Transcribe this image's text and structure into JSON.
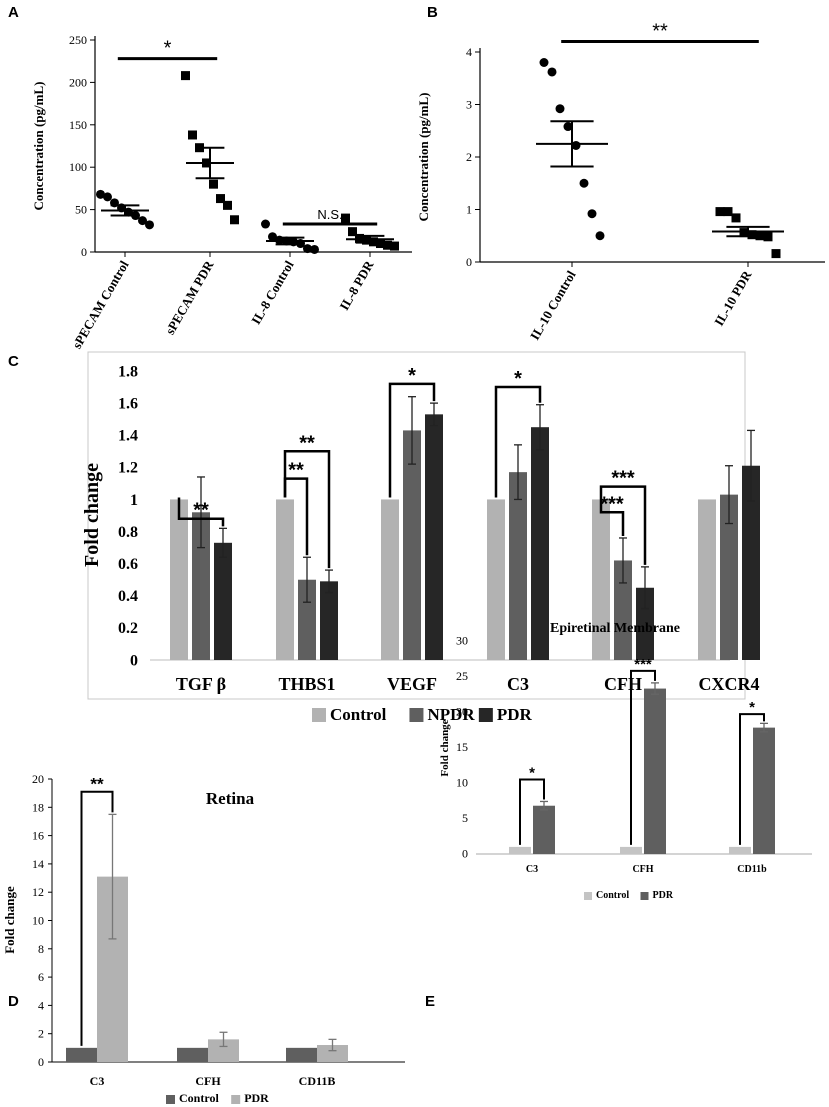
{
  "chart_data": [
    {
      "panel": "A",
      "type": "scatter",
      "ylabel": "Concentration (pg/mL)",
      "ylim": [
        0,
        250
      ],
      "yticks": [
        0,
        50,
        100,
        150,
        200,
        250
      ],
      "categories": [
        "sPECAM Control",
        "sPECAM PDR",
        "IL-8 Control",
        "IL-8 PDR"
      ],
      "markers": [
        "circle",
        "square",
        "circle",
        "square"
      ],
      "points": [
        [
          68,
          65,
          58,
          52,
          47,
          43,
          37,
          32
        ],
        [
          208,
          138,
          123,
          105,
          80,
          63,
          55,
          38
        ],
        [
          33,
          18,
          14,
          13,
          12,
          10,
          4,
          3
        ],
        [
          40,
          24,
          16,
          14,
          12,
          10,
          8,
          7
        ]
      ],
      "means": [
        49,
        105,
        13,
        15
      ],
      "sem": [
        6,
        18,
        4,
        4
      ],
      "comparisons": [
        {
          "from": 0,
          "to": 1,
          "label": "*",
          "y": 228
        },
        {
          "from": 2,
          "to": 3,
          "label": "N.S.",
          "y": 33
        }
      ]
    },
    {
      "panel": "B",
      "type": "scatter",
      "ylabel": "Concentration (pg/mL)",
      "ylim": [
        0,
        4
      ],
      "yticks": [
        0,
        1,
        2,
        3,
        4
      ],
      "categories": [
        "IL-10 Control",
        "IL-10 PDR"
      ],
      "markers": [
        "circle",
        "square"
      ],
      "points": [
        [
          3.8,
          3.62,
          2.92,
          2.58,
          2.22,
          1.5,
          0.92,
          0.5
        ],
        [
          0.96,
          0.96,
          0.84,
          0.56,
          0.52,
          0.5,
          0.48,
          0.16
        ]
      ],
      "means": [
        2.25,
        0.58
      ],
      "sem": [
        0.43,
        0.09
      ],
      "comparisons": [
        {
          "from": 0,
          "to": 1,
          "label": "**",
          "y": 4.2
        }
      ]
    },
    {
      "panel": "C",
      "type": "bar",
      "ylabel": "Fold change",
      "ylim": [
        0,
        1.8
      ],
      "yticks": [
        "0",
        "0.2",
        "0.4",
        "0.6",
        "0.8",
        "1",
        "1.2",
        "1.4",
        "1.6",
        "1.8"
      ],
      "categories": [
        "TGF β",
        "THBS1",
        "VEGF",
        "C3",
        "CFH",
        "CXCR4"
      ],
      "series": [
        {
          "name": "Control",
          "color": "#b2b2b2",
          "values": [
            1,
            1,
            1,
            1,
            1,
            1
          ],
          "errors": [
            0,
            0,
            0,
            0,
            0,
            0
          ]
        },
        {
          "name": "NPDR",
          "color": "#5f5f5f",
          "values": [
            0.92,
            0.5,
            1.43,
            1.17,
            0.62,
            1.03
          ],
          "errors": [
            0.22,
            0.14,
            0.21,
            0.17,
            0.14,
            0.18
          ]
        },
        {
          "name": "PDR",
          "color": "#262626",
          "values": [
            0.73,
            0.49,
            1.53,
            1.45,
            0.45,
            1.21
          ],
          "errors": [
            0.09,
            0.07,
            0.07,
            0.14,
            0.13,
            0.22
          ]
        }
      ],
      "comparisons": [
        {
          "category": 0,
          "from": 0,
          "to": 2,
          "label": "**",
          "y": 0.88
        },
        {
          "category": 1,
          "from": 0,
          "to": 2,
          "label": "**",
          "y": 1.3
        },
        {
          "category": 1,
          "from": 0,
          "to": 1,
          "label": "**",
          "y": 1.13
        },
        {
          "category": 2,
          "from": 0,
          "to": 2,
          "label": "*",
          "y": 1.72
        },
        {
          "category": 3,
          "from": 0,
          "to": 2,
          "label": "*",
          "y": 1.7
        },
        {
          "category": 4,
          "from": 0,
          "to": 2,
          "label": "***",
          "y": 1.08
        },
        {
          "category": 4,
          "from": 0,
          "to": 1,
          "label": "***",
          "y": 0.92
        }
      ]
    },
    {
      "panel": "D",
      "type": "bar",
      "title": "Retina",
      "ylabel": "Fold change",
      "ylim": [
        0,
        20
      ],
      "yticks": [
        0,
        2,
        4,
        6,
        8,
        10,
        12,
        14,
        16,
        18,
        20
      ],
      "categories": [
        "C3",
        "CFH",
        "CD11B"
      ],
      "series": [
        {
          "name": "Control",
          "color": "#5f5f5f",
          "values": [
            1,
            1,
            1
          ],
          "errors": [
            0,
            0,
            0
          ]
        },
        {
          "name": "PDR",
          "color": "#b2b2b2",
          "values": [
            13.1,
            1.6,
            1.2
          ],
          "errors": [
            4.4,
            0.5,
            0.4
          ]
        }
      ],
      "comparisons": [
        {
          "category": 0,
          "from": 0,
          "to": 1,
          "label": "**",
          "y": 19.1
        }
      ]
    },
    {
      "panel": "E",
      "type": "bar",
      "title": "Epiretinal Membrane",
      "ylabel": "Fold change",
      "ylim": [
        0,
        30
      ],
      "yticks": [
        0,
        5,
        10,
        15,
        20,
        25,
        30
      ],
      "categories": [
        "C3",
        "CFH",
        "CD11b"
      ],
      "series": [
        {
          "name": "Control",
          "color": "#c4c4c4",
          "values": [
            1,
            1,
            1
          ],
          "errors": [
            0,
            0,
            0
          ]
        },
        {
          "name": "PDR",
          "color": "#5f5f5f",
          "values": [
            6.8,
            23.3,
            17.8
          ],
          "errors": [
            0.6,
            0.8,
            0.6
          ]
        }
      ],
      "comparisons": [
        {
          "category": 0,
          "from": 0,
          "to": 1,
          "label": "*",
          "y": 10.5
        },
        {
          "category": 1,
          "from": 0,
          "to": 1,
          "label": "***",
          "y": 25.8
        },
        {
          "category": 2,
          "from": 0,
          "to": 1,
          "label": "*",
          "y": 19.7
        }
      ]
    }
  ]
}
